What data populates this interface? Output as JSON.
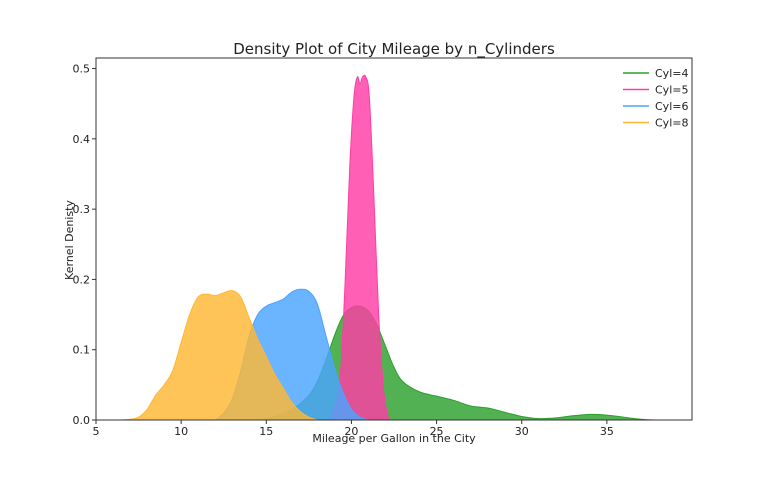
{
  "chart_data": {
    "type": "area",
    "title": "Density Plot of City Mileage by n_Cylinders",
    "xlabel": "Mileage per Gallon in the City",
    "ylabel": "Kernel Denisty",
    "xlim": [
      5,
      40
    ],
    "ylim": [
      0,
      0.515
    ],
    "xticks": [
      5,
      10,
      15,
      20,
      25,
      30,
      35
    ],
    "yticks": [
      0.0,
      0.1,
      0.2,
      0.3,
      0.4,
      0.5
    ],
    "grid": false,
    "legend_position": "top-right",
    "series": [
      {
        "name": "Cyl=4",
        "color": "#2ca02c",
        "x": [
          14.5,
          15.5,
          16.5,
          17.5,
          18.0,
          18.5,
          19.0,
          19.5,
          20.0,
          20.5,
          21.0,
          21.5,
          22.0,
          22.5,
          23.0,
          24.0,
          25.0,
          26.0,
          27.0,
          28.0,
          29.0,
          30.0,
          31.0,
          32.0,
          33.0,
          34.0,
          35.0,
          36.0,
          37.0,
          37.8
        ],
        "y": [
          0.0,
          0.005,
          0.015,
          0.035,
          0.055,
          0.085,
          0.12,
          0.148,
          0.16,
          0.162,
          0.155,
          0.135,
          0.105,
          0.075,
          0.055,
          0.04,
          0.034,
          0.028,
          0.02,
          0.017,
          0.011,
          0.005,
          0.002,
          0.003,
          0.006,
          0.008,
          0.007,
          0.004,
          0.001,
          0.0
        ]
      },
      {
        "name": "Cyl=5",
        "color": "#ff3da5",
        "x": [
          18.8,
          19.3,
          19.6,
          19.9,
          20.15,
          20.35,
          20.5,
          20.65,
          20.85,
          21.05,
          21.3,
          21.6,
          21.9,
          22.2
        ],
        "y": [
          0.0,
          0.05,
          0.18,
          0.36,
          0.46,
          0.488,
          0.478,
          0.488,
          0.488,
          0.46,
          0.33,
          0.15,
          0.04,
          0.0
        ]
      },
      {
        "name": "Cyl=6",
        "color": "#4aa3ff",
        "x": [
          12.0,
          12.5,
          13.0,
          13.5,
          14.0,
          14.5,
          15.0,
          15.5,
          16.0,
          16.5,
          17.0,
          17.5,
          18.0,
          18.5,
          19.0,
          19.5,
          20.0,
          20.5,
          21.0
        ],
        "y": [
          0.0,
          0.01,
          0.03,
          0.07,
          0.12,
          0.15,
          0.162,
          0.167,
          0.172,
          0.182,
          0.186,
          0.183,
          0.165,
          0.12,
          0.075,
          0.04,
          0.015,
          0.004,
          0.0
        ]
      },
      {
        "name": "Cyl=8",
        "color": "#ffb733",
        "x": [
          6.5,
          7.0,
          7.5,
          8.0,
          8.5,
          9.0,
          9.5,
          10.0,
          10.5,
          11.0,
          11.5,
          12.0,
          12.5,
          13.0,
          13.5,
          14.0,
          14.5,
          15.0,
          15.5,
          16.0,
          16.5,
          17.0,
          17.5,
          18.0
        ],
        "y": [
          0.0,
          0.001,
          0.004,
          0.015,
          0.035,
          0.05,
          0.07,
          0.11,
          0.15,
          0.175,
          0.179,
          0.177,
          0.181,
          0.184,
          0.175,
          0.145,
          0.115,
          0.09,
          0.065,
          0.045,
          0.025,
          0.012,
          0.004,
          0.0
        ]
      }
    ]
  }
}
